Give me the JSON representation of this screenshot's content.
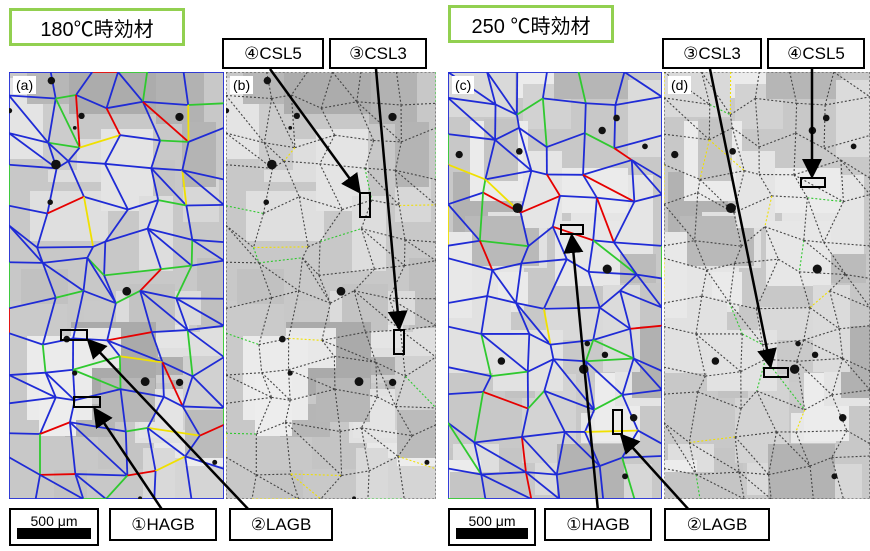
{
  "left": {
    "title": "180℃時効材",
    "panel_a_letter": "(a)",
    "panel_b_letter": "(b)",
    "label_csl5": "④CSL5",
    "label_csl3": "③CSL3",
    "label_hagb": "①HAGB",
    "label_lagb": "②LAGB",
    "scale": "500 μm"
  },
  "right": {
    "title": "250 ℃時効材",
    "panel_c_letter": "(c)",
    "panel_d_letter": "(d)",
    "label_csl3": "③CSL3",
    "label_csl5": "④CSL5",
    "label_hagb": "①HAGB",
    "label_lagb": "②LAGB",
    "scale": "500 μm"
  },
  "colors": {
    "title_border": "#92d050",
    "hagb": "#1f2bd6",
    "lagb": "#2fc92f",
    "csl3": "#e60000",
    "csl5": "#f0e000"
  }
}
